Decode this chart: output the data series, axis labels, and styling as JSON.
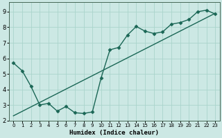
{
  "xlabel": "Humidex (Indice chaleur)",
  "bg_color": "#cce8e4",
  "grid_color": "#aad4cc",
  "line_color": "#1a6655",
  "xlim": [
    -0.5,
    23.5
  ],
  "ylim": [
    2.0,
    9.6
  ],
  "xticks": [
    0,
    1,
    2,
    3,
    4,
    5,
    6,
    7,
    8,
    9,
    10,
    11,
    12,
    13,
    14,
    15,
    16,
    17,
    18,
    19,
    20,
    21,
    22,
    23
  ],
  "yticks": [
    2,
    3,
    4,
    5,
    6,
    7,
    8,
    9
  ],
  "line1_x": [
    0,
    1,
    2,
    3,
    4,
    5,
    6,
    7,
    8,
    9,
    10,
    11,
    12,
    13,
    14,
    15,
    16,
    17,
    18,
    19,
    20,
    21,
    22,
    23
  ],
  "line1_y": [
    5.7,
    5.2,
    4.2,
    3.0,
    3.1,
    2.6,
    2.9,
    2.5,
    2.45,
    2.55,
    4.75,
    6.55,
    6.7,
    7.5,
    8.05,
    7.75,
    7.6,
    7.7,
    8.2,
    8.3,
    8.5,
    9.0,
    9.1,
    8.85
  ],
  "line2_x": [
    0,
    23
  ],
  "line2_y": [
    2.3,
    8.9
  ],
  "marker": "D",
  "markersize": 2.5,
  "linewidth": 1.0,
  "linewidth2": 1.0
}
